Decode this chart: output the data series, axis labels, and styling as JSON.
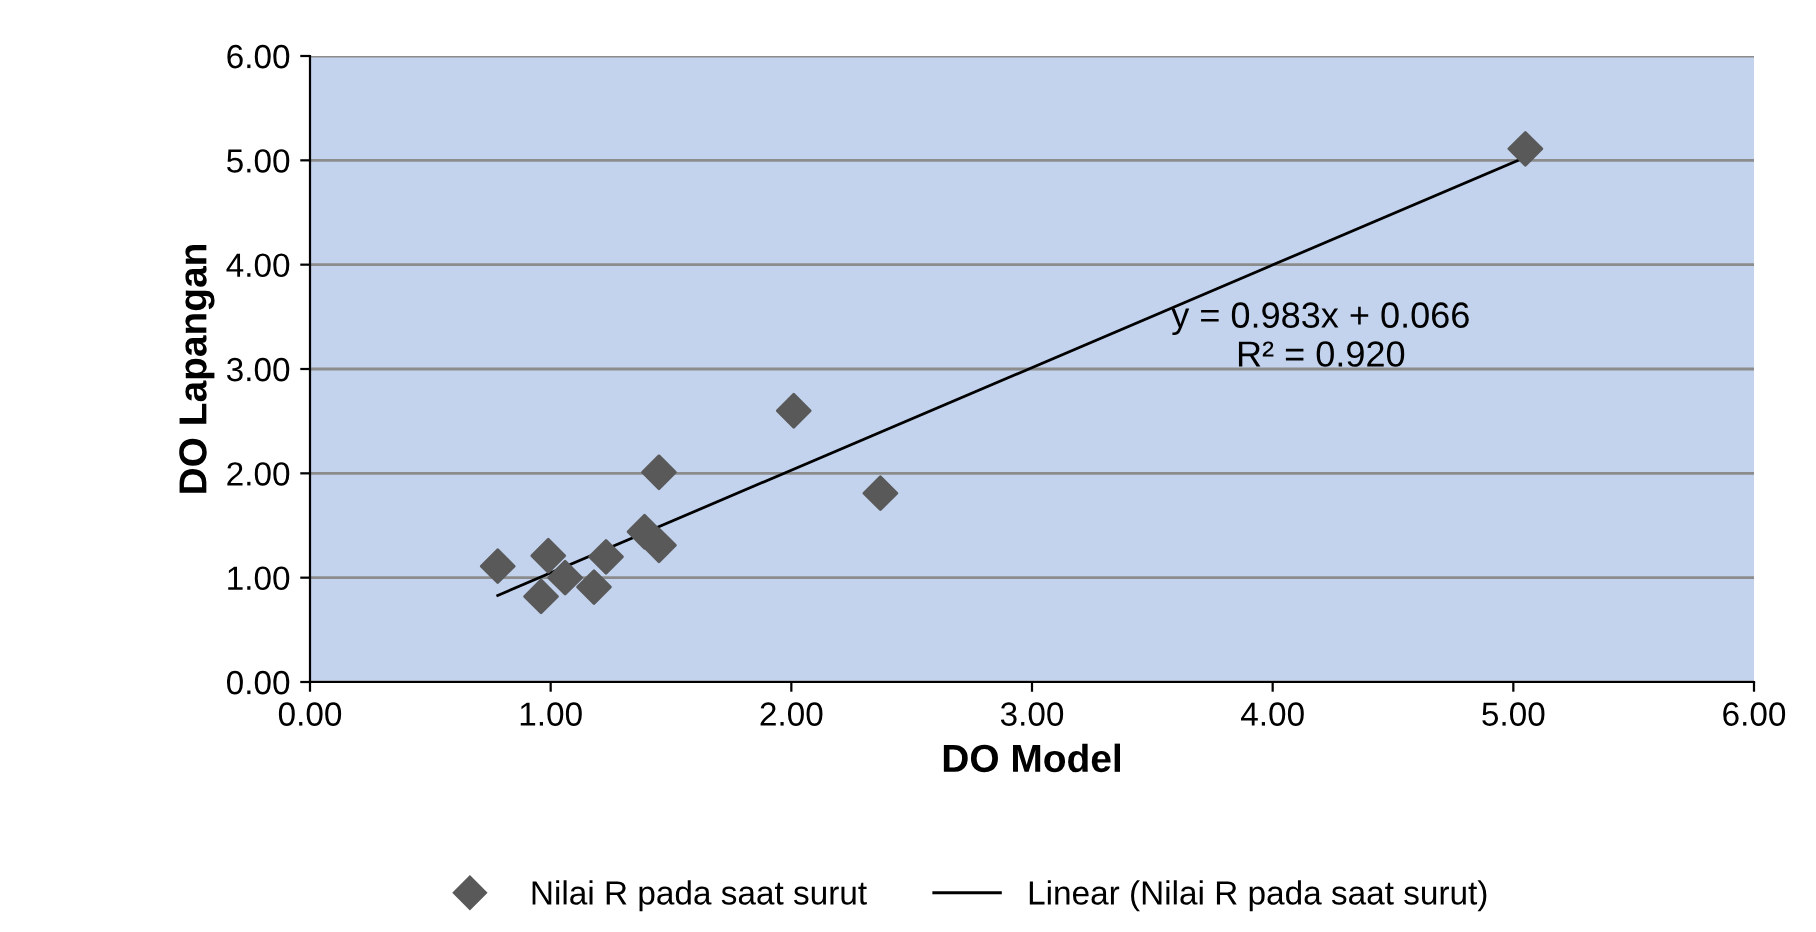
{
  "chart_data": {
    "type": "scatter",
    "xlabel": "DO Model",
    "ylabel": "DO Lapangan",
    "series": [
      {
        "name": "Nilai R pada saat surut",
        "color": "#595959",
        "marker": "diamond",
        "x": [
          0.78,
          0.99,
          0.96,
          1.06,
          1.18,
          1.23,
          1.39,
          1.45,
          1.45,
          2.01,
          2.37,
          5.05
        ],
        "values": [
          1.11,
          1.21,
          0.82,
          1.0,
          0.91,
          1.2,
          1.44,
          1.31,
          2.01,
          2.6,
          1.81,
          5.11
        ]
      },
      {
        "name": "Linear (Nilai R pada saat surut)",
        "type": "line",
        "color": "#000000",
        "marker": "none",
        "line_style": "solid",
        "x": [
          0.78,
          5.05
        ],
        "values": [
          0.83,
          5.03
        ]
      }
    ],
    "annotations": [
      "y = 0.983x + 0.066\nR² = 0.920"
    ],
    "xlim": [
      0,
      6
    ],
    "ylim": [
      0,
      6
    ],
    "xticks": [
      {
        "value": 0,
        "label": "0.00"
      },
      {
        "value": 1,
        "label": "1.00"
      },
      {
        "value": 2,
        "label": "2.00"
      },
      {
        "value": 3,
        "label": "3.00"
      },
      {
        "value": 4,
        "label": "4.00"
      },
      {
        "value": 5,
        "label": "5.00"
      },
      {
        "value": 6,
        "label": "6.00"
      }
    ],
    "yticks": [
      {
        "value": 0,
        "label": "0.00"
      },
      {
        "value": 1,
        "label": "1.00"
      },
      {
        "value": 2,
        "label": "2.00"
      },
      {
        "value": 3,
        "label": "3.00"
      },
      {
        "value": 4,
        "label": "4.00"
      },
      {
        "value": 5,
        "label": "5.00"
      },
      {
        "value": 6,
        "label": "6.00"
      }
    ],
    "grid": "y",
    "legend": "bottom"
  }
}
